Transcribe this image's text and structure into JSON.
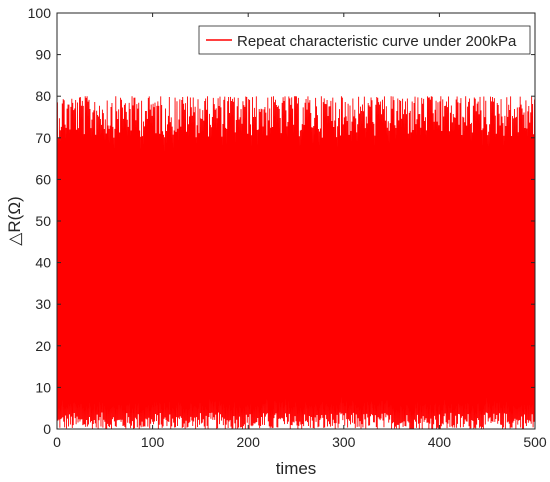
{
  "chart_data": {
    "type": "line",
    "title": "",
    "xlabel": "times",
    "ylabel": "△R(Ω)",
    "xlim": [
      0,
      500
    ],
    "ylim": [
      0,
      100
    ],
    "x_ticks": [
      "0",
      "100",
      "200",
      "300",
      "400",
      "500"
    ],
    "y_ticks": [
      "0",
      "10",
      "20",
      "30",
      "40",
      "50",
      "60",
      "70",
      "80",
      "90",
      "100"
    ],
    "grid": false,
    "legend_position": "top-right",
    "series": [
      {
        "name": "Repeat characteristic curve under 200kPa",
        "color": "#ff0000",
        "cycles": 500,
        "peak_values": [
          70,
          80
        ],
        "trough_values": [
          0,
          4
        ]
      }
    ]
  }
}
